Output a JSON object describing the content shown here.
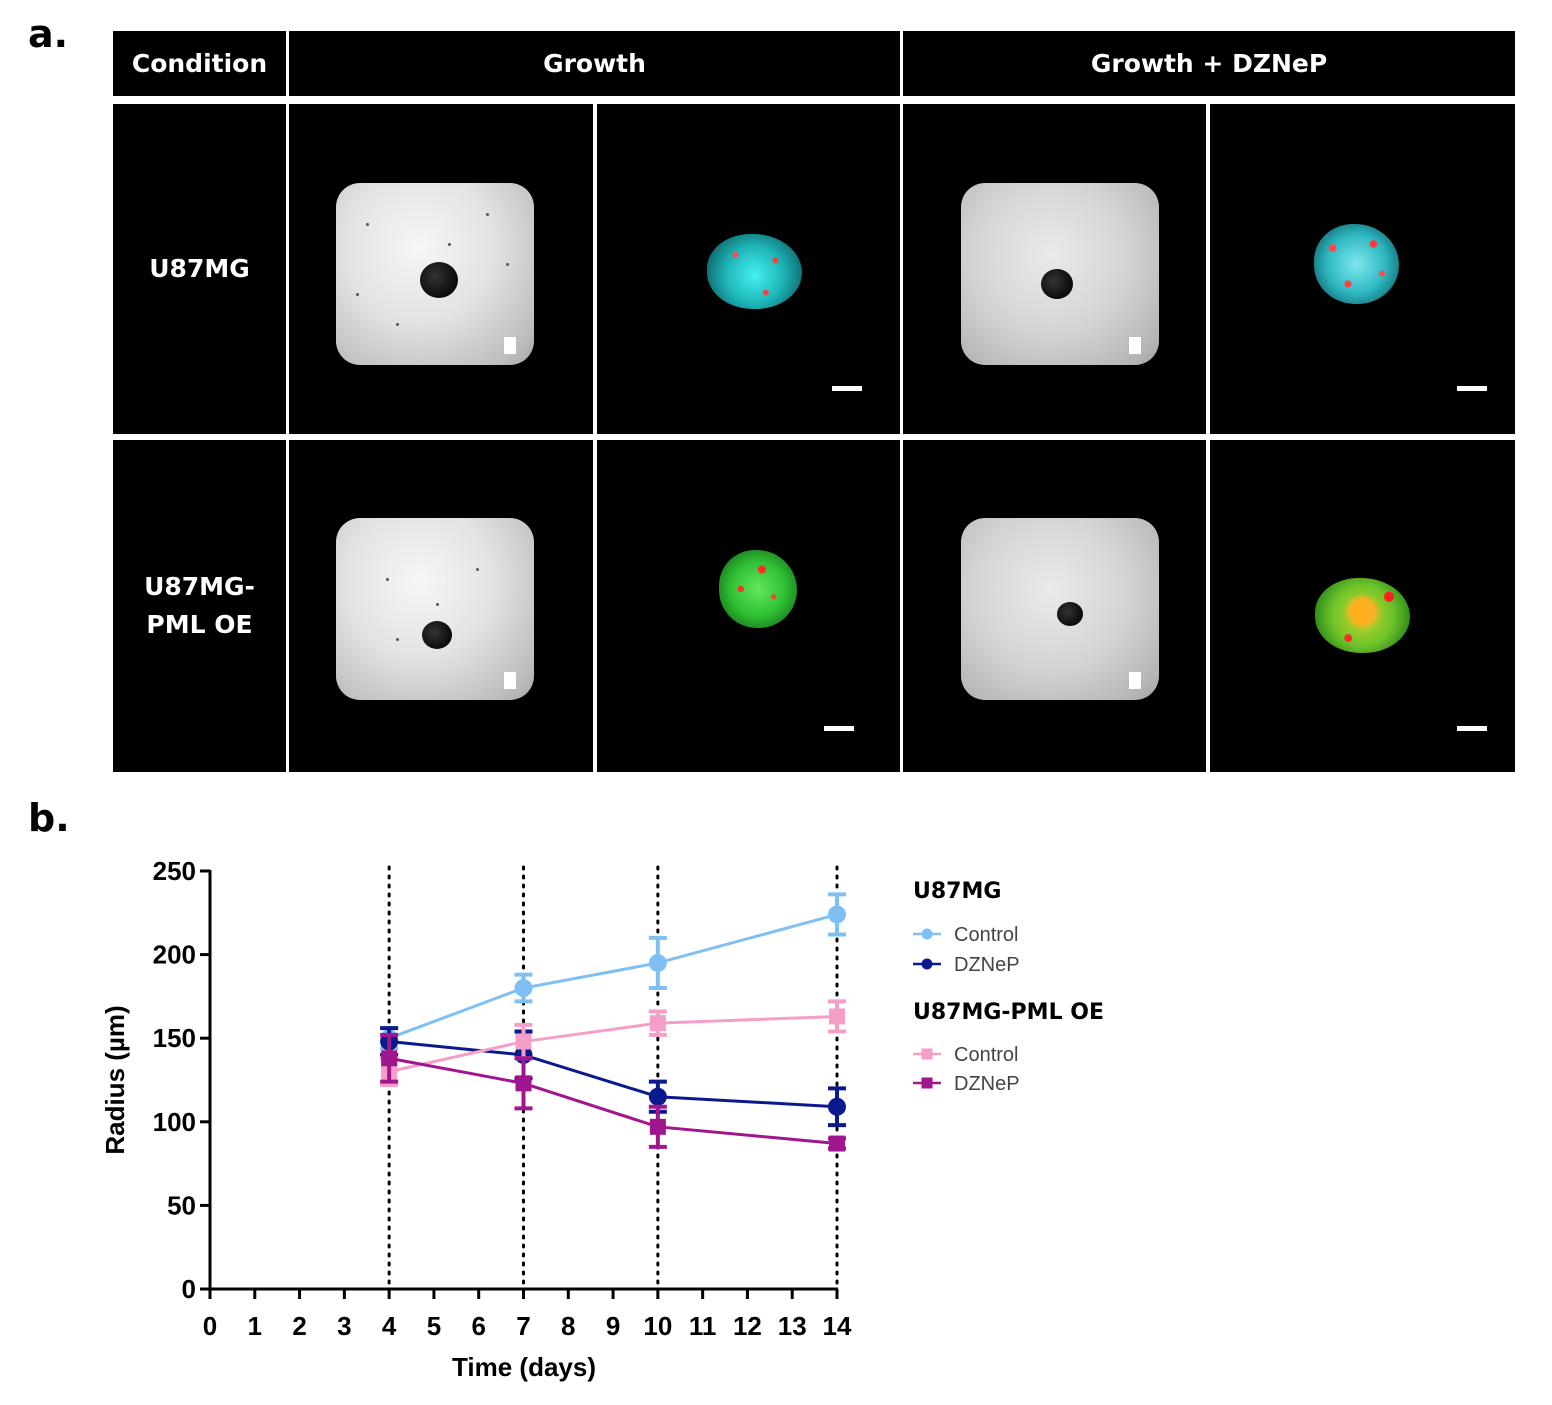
{
  "panel_a": {
    "letter": "a.",
    "headers": {
      "condition": "Condition",
      "growth": "Growth",
      "growth_dznep": "Growth + DZNeP"
    },
    "rows": [
      {
        "label_line1": "U87MG",
        "label_line2": ""
      },
      {
        "label_line1": "U87MG-",
        "label_line2": "PML OE"
      }
    ],
    "colors": {
      "fluor_u87": "#1fb6b9",
      "fluor_pml": "#2fbf33",
      "fluor_red": "#ff3b3b"
    }
  },
  "panel_b": {
    "letter": "b."
  },
  "chart_data": {
    "type": "line",
    "xlabel": "Time (days)",
    "ylabel": "Radius (µm)",
    "xlim": [
      0,
      14
    ],
    "ylim": [
      0,
      250
    ],
    "xticks": [
      "0",
      "1",
      "2",
      "3",
      "4",
      "5",
      "6",
      "7",
      "8",
      "9",
      "10",
      "11",
      "12",
      "13",
      "14"
    ],
    "yticks": [
      "0",
      "50",
      "100",
      "150",
      "200",
      "250"
    ],
    "vlines": [
      4,
      7,
      10,
      14
    ],
    "x": [
      4,
      7,
      10,
      14
    ],
    "groups": [
      {
        "title": "U87MG",
        "series": [
          {
            "name": "Control",
            "color": "#7fc0f4",
            "marker": "circle",
            "values": [
              150,
              180,
              195,
              224
            ],
            "err": [
              6,
              8,
              15,
              12
            ]
          },
          {
            "name": "DZNeP",
            "color": "#0a1a8c",
            "marker": "circle",
            "values": [
              148,
              140,
              115,
              109
            ],
            "err": [
              8,
              14,
              9,
              11
            ]
          }
        ]
      },
      {
        "title": "U87MG-PML OE",
        "series": [
          {
            "name": "Control",
            "color": "#f59ec8",
            "marker": "square",
            "values": [
              130,
              148,
              159,
              163
            ],
            "err": [
              8,
              10,
              7,
              9
            ]
          },
          {
            "name": "DZNeP",
            "color": "#a0168f",
            "marker": "square",
            "values": [
              138,
              123,
              97,
              87
            ],
            "err": [
              14,
              15,
              12,
              3
            ]
          }
        ]
      }
    ]
  }
}
